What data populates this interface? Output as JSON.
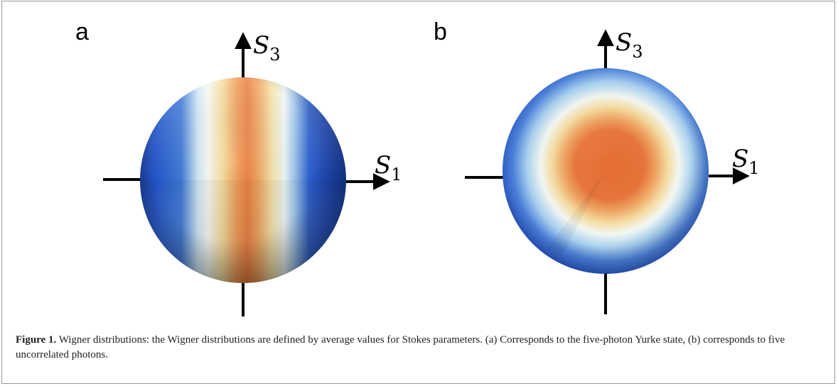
{
  "panels": [
    {
      "label": "a",
      "axis_vertical": "S",
      "axis_vertical_sub": "3",
      "axis_horizontal": "S",
      "axis_horizontal_sub": "1",
      "pattern": "vertical-bands"
    },
    {
      "label": "b",
      "axis_vertical": "S",
      "axis_vertical_sub": "3",
      "axis_horizontal": "S",
      "axis_horizontal_sub": "1",
      "pattern": "central-spot"
    }
  ],
  "colors": {
    "high": "#e8622a",
    "mid": "#f3d79a",
    "zero": "#f4f8fb",
    "low": "#1e4fc8"
  },
  "caption": {
    "label": "Figure 1.",
    "text": " Wigner distributions: the Wigner distributions are defined by average values for Stokes parameters. (a) Corresponds to the five-photon Yurke state, (b) corresponds to five uncorrelated photons."
  }
}
